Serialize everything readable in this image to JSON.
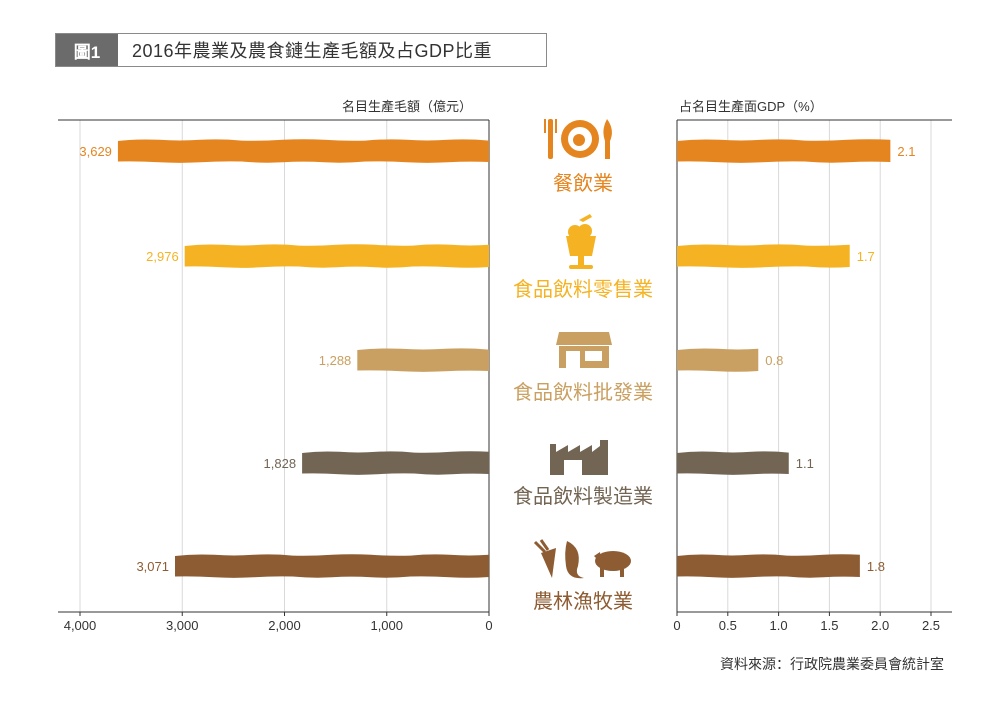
{
  "figure": {
    "tag": "圖1",
    "title": "2016年農業及農食鏈生產毛額及占GDP比重"
  },
  "source_note": "資料來源：行政院農業委員會統計室",
  "colors": {
    "restaurant": "#e5851f",
    "retail": "#f5b324",
    "wholesale": "#c9a061",
    "manufacturing": "#736554",
    "agriculture": "#8d5c33",
    "axis": "#333333"
  },
  "chart_data": [
    {
      "type": "bar",
      "orientation": "horizontal",
      "direction": "right-to-left",
      "ylabel": "名目生產毛額（億元）",
      "categories": [
        "餐飲業",
        "食品飲料零售業",
        "食品飲料批發業",
        "食品飲料製造業",
        "農林漁牧業"
      ],
      "values": [
        3629,
        2976,
        1288,
        1828,
        3071
      ],
      "value_labels": [
        "3,629",
        "2,976",
        "1,288",
        "1,828",
        "3,071"
      ],
      "xlim": [
        0,
        4000
      ],
      "ticks": [
        4000,
        3000,
        2000,
        1000,
        0
      ],
      "tick_labels": [
        "4,000",
        "3,000",
        "2,000",
        "1,000",
        "0"
      ],
      "grid": true
    },
    {
      "type": "bar",
      "orientation": "horizontal",
      "direction": "left-to-right",
      "ylabel": "占名目生產面GDP（%）",
      "categories": [
        "餐飲業",
        "食品飲料零售業",
        "食品飲料批發業",
        "食品飲料製造業",
        "農林漁牧業"
      ],
      "values": [
        2.1,
        1.7,
        0.8,
        1.1,
        1.8
      ],
      "value_labels": [
        "2.1",
        "1.7",
        "0.8",
        "1.1",
        "1.8"
      ],
      "xlim": [
        0,
        2.5
      ],
      "ticks": [
        0,
        0.5,
        1.0,
        1.5,
        2.0,
        2.5
      ],
      "tick_labels": [
        "0",
        "0.5",
        "1.0",
        "1.5",
        "2.0",
        "2.5"
      ],
      "grid": true
    }
  ],
  "categories": [
    {
      "label": "餐飲業",
      "icon": "plate-fork-knife-icon",
      "color_key": "restaurant"
    },
    {
      "label": "食品飲料零售業",
      "icon": "drink-cup-icon",
      "color_key": "retail"
    },
    {
      "label": "食品飲料批發業",
      "icon": "storefront-icon",
      "color_key": "wholesale"
    },
    {
      "label": "食品飲料製造業",
      "icon": "factory-icon",
      "color_key": "manufacturing"
    },
    {
      "label": "農林漁牧業",
      "icon": "carrot-fish-pig-icon",
      "color_key": "agriculture"
    }
  ]
}
